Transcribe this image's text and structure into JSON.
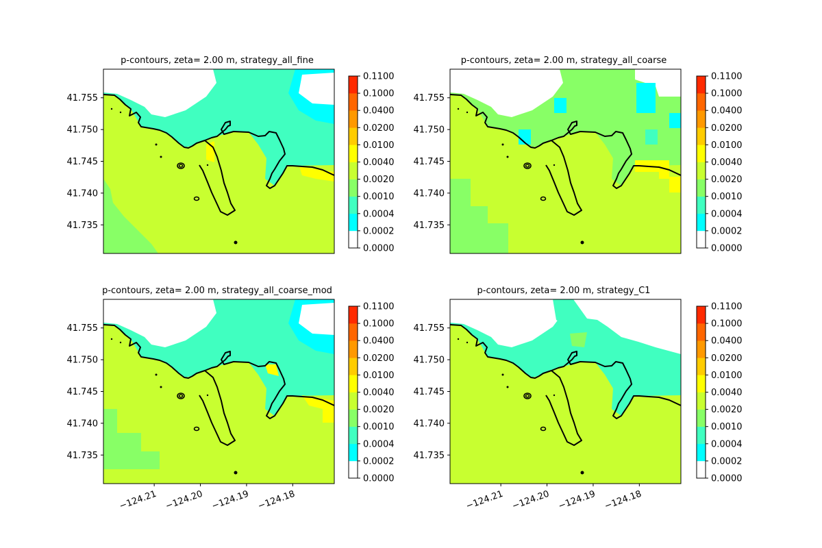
{
  "figure": {
    "colors": {
      "land": "#c8ff30",
      "level_0001_0002": "#88ff66",
      "level_0002_0004": "#40ffc0",
      "level_0004_001": "#00ffff",
      "level_high": "#ffff00",
      "coast": "#000000",
      "empty": "#ffffff"
    }
  },
  "chart_data": [
    {
      "type": "contour map",
      "title": "p-contours, zeta= 2.00 m, strategy_all_fine",
      "xlim": [
        -124.221,
        -124.171
      ],
      "ylim": [
        41.7305,
        41.7595
      ],
      "y_ticks": [
        "41.735",
        "41.740",
        "41.745",
        "41.750",
        "41.755"
      ],
      "x_ticks": [],
      "colorbar": {
        "levels": [
          "0.0000",
          "0.0002",
          "0.0004",
          "0.0010",
          "0.0020",
          "0.0040",
          "0.0100",
          "0.0200",
          "0.0400",
          "0.1000",
          "0.1100"
        ],
        "colors": [
          "#ffffff",
          "#00ffff",
          "#40ffc0",
          "#88ff66",
          "#c8ff30",
          "#ffff00",
          "#ffcc00",
          "#ff9900",
          "#ff6600",
          "#ff2a00"
        ]
      }
    },
    {
      "type": "contour map",
      "title": "p-contours, zeta= 2.00 m, strategy_all_coarse",
      "xlim": [
        -124.221,
        -124.171
      ],
      "ylim": [
        41.7305,
        41.7595
      ],
      "y_ticks": [
        "41.735",
        "41.740",
        "41.745",
        "41.750",
        "41.755"
      ],
      "x_ticks": [],
      "colorbar": {
        "levels": [
          "0.0000",
          "0.0002",
          "0.0004",
          "0.0010",
          "0.0020",
          "0.0040",
          "0.0100",
          "0.0200",
          "0.0400",
          "0.1000",
          "0.1100"
        ],
        "colors": [
          "#ffffff",
          "#00ffff",
          "#40ffc0",
          "#88ff66",
          "#c8ff30",
          "#ffff00",
          "#ffcc00",
          "#ff9900",
          "#ff6600",
          "#ff2a00"
        ]
      }
    },
    {
      "type": "contour map",
      "title": "p-contours, zeta= 2.00 m, strategy_all_coarse_mod",
      "xlim": [
        -124.221,
        -124.171
      ],
      "ylim": [
        41.7305,
        41.7595
      ],
      "y_ticks": [
        "41.735",
        "41.740",
        "41.745",
        "41.750",
        "41.755"
      ],
      "x_ticks": [
        "−124.21",
        "−124.20",
        "−124.19",
        "−124.18"
      ],
      "colorbar": {
        "levels": [
          "0.0000",
          "0.0002",
          "0.0004",
          "0.0010",
          "0.0020",
          "0.0040",
          "0.0100",
          "0.0200",
          "0.0400",
          "0.1000",
          "0.1100"
        ],
        "colors": [
          "#ffffff",
          "#00ffff",
          "#40ffc0",
          "#88ff66",
          "#c8ff30",
          "#ffff00",
          "#ffcc00",
          "#ff9900",
          "#ff6600",
          "#ff2a00"
        ]
      }
    },
    {
      "type": "contour map",
      "title": "p-contours, zeta= 2.00 m, strategy_C1",
      "xlim": [
        -124.221,
        -124.171
      ],
      "ylim": [
        41.7305,
        41.7595
      ],
      "y_ticks": [
        "41.735",
        "41.740",
        "41.745",
        "41.750",
        "41.755"
      ],
      "x_ticks": [
        "−124.21",
        "−124.20",
        "−124.19",
        "−124.18"
      ],
      "colorbar": {
        "levels": [
          "0.0000",
          "0.0002",
          "0.0004",
          "0.0010",
          "0.0020",
          "0.0040",
          "0.0100",
          "0.0200",
          "0.0400",
          "0.1000",
          "0.1100"
        ],
        "colors": [
          "#ffffff",
          "#00ffff",
          "#40ffc0",
          "#88ff66",
          "#c8ff30",
          "#ffff00",
          "#ffcc00",
          "#ff9900",
          "#ff6600",
          "#ff2a00"
        ]
      }
    }
  ]
}
